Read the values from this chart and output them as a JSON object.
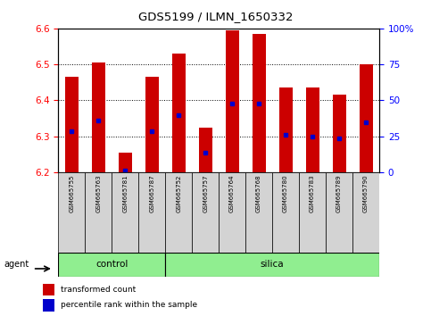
{
  "title": "GDS5199 / ILMN_1650332",
  "samples": [
    "GSM665755",
    "GSM665763",
    "GSM665781",
    "GSM665787",
    "GSM665752",
    "GSM665757",
    "GSM665764",
    "GSM665768",
    "GSM665780",
    "GSM665783",
    "GSM665789",
    "GSM665790"
  ],
  "groups": [
    "control",
    "control",
    "control",
    "control",
    "silica",
    "silica",
    "silica",
    "silica",
    "silica",
    "silica",
    "silica",
    "silica"
  ],
  "transformed_count": [
    6.465,
    6.505,
    6.255,
    6.465,
    6.53,
    6.325,
    6.595,
    6.585,
    6.435,
    6.435,
    6.415,
    6.5
  ],
  "percentile_rank": [
    6.315,
    6.345,
    6.205,
    6.315,
    6.36,
    6.255,
    6.39,
    6.39,
    6.305,
    6.3,
    6.295,
    6.34
  ],
  "ylim_left": [
    6.2,
    6.6
  ],
  "right_ticks": [
    0,
    25,
    50,
    75,
    100
  ],
  "right_tick_labels": [
    "0",
    "25",
    "50",
    "75",
    "100%"
  ],
  "left_ticks": [
    6.2,
    6.3,
    6.4,
    6.5,
    6.6
  ],
  "bar_color": "#cc0000",
  "dot_color": "#0000cc",
  "group_bg_color": "#90ee90",
  "sample_bg_color": "#d3d3d3",
  "bar_width": 0.5,
  "base_value": 6.2,
  "legend_bar_label": "transformed count",
  "legend_dot_label": "percentile rank within the sample",
  "agent_label": "agent",
  "group_label_control": "control",
  "group_label_silica": "silica",
  "n_control": 4,
  "n_silica": 8
}
